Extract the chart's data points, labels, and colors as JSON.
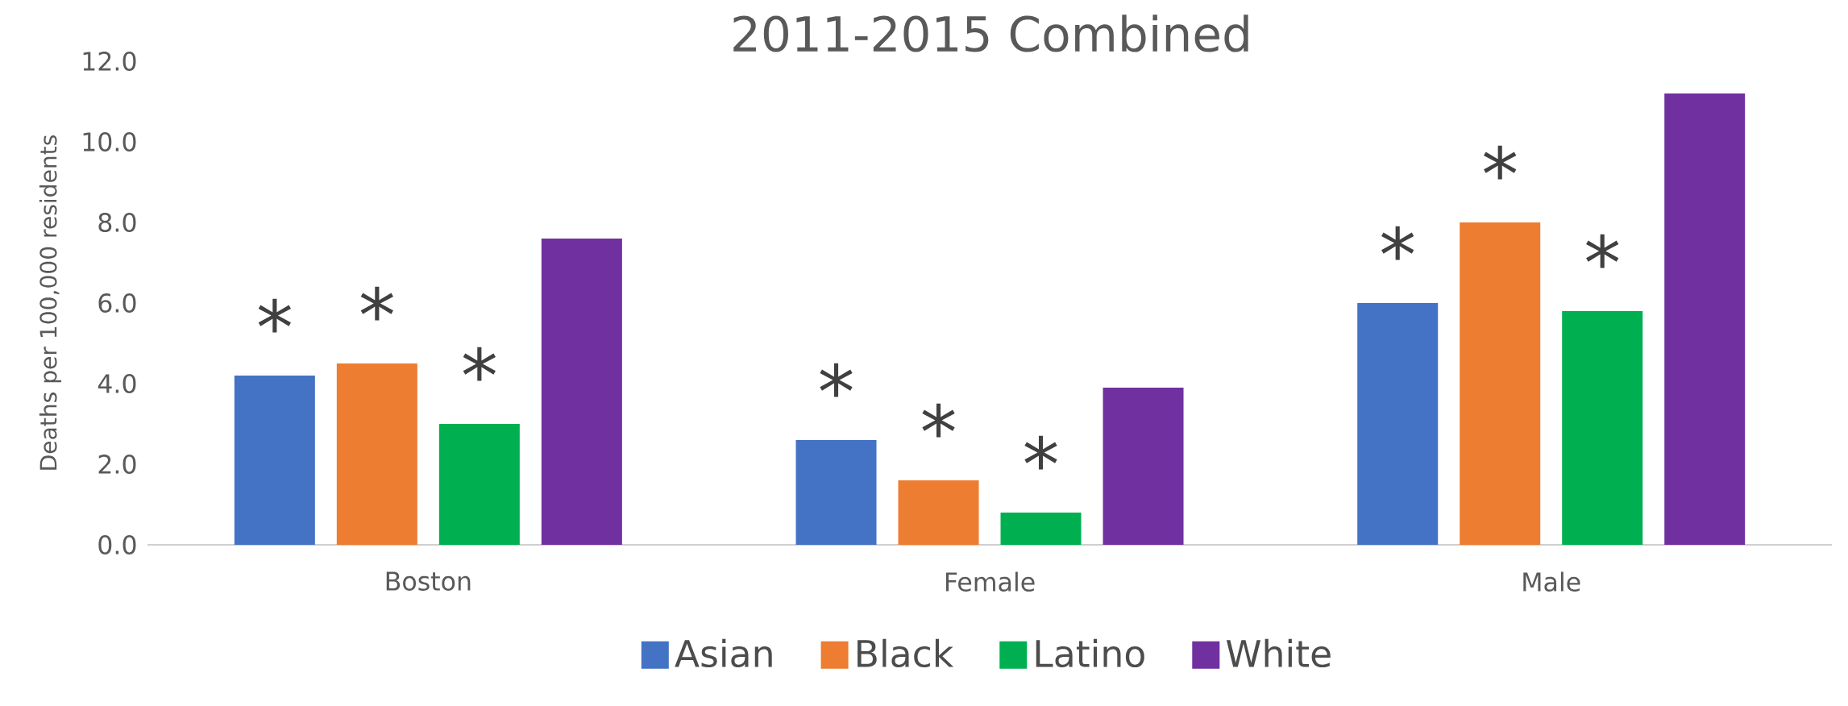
{
  "chart_data": {
    "type": "bar",
    "title": "2011-2015 Combined",
    "ylabel": "Deaths per 100,000 residents",
    "categories": [
      "Boston",
      "Female",
      "Male"
    ],
    "series": [
      {
        "name": "Asian",
        "color": "#4472c4",
        "values": [
          4.2,
          2.6,
          6.0
        ]
      },
      {
        "name": "Black",
        "color": "#ed7d31",
        "values": [
          4.5,
          1.6,
          8.0
        ]
      },
      {
        "name": "Latino",
        "color": "#00b050",
        "values": [
          3.0,
          0.8,
          5.8
        ]
      },
      {
        "name": "White",
        "color": "#7030a0",
        "values": [
          7.6,
          3.9,
          11.2
        ]
      }
    ],
    "ylim": [
      0,
      12
    ],
    "yticks": [
      {
        "value": 0,
        "label": "0.0"
      },
      {
        "value": 2,
        "label": "2.0"
      },
      {
        "value": 4,
        "label": "4.0"
      },
      {
        "value": 6,
        "label": "6.0"
      },
      {
        "value": 8,
        "label": "8.0"
      },
      {
        "value": 10,
        "label": "10.0"
      },
      {
        "value": 12,
        "label": "12.0"
      }
    ],
    "annotations": [
      "*",
      "*",
      "*",
      "*",
      "*",
      "*",
      "*",
      "*",
      "*"
    ],
    "legend": "bottom",
    "grid": false
  }
}
